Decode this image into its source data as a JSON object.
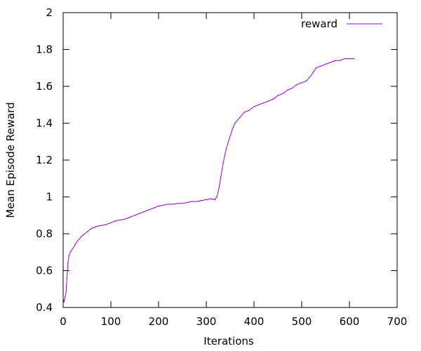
{
  "chart_data": {
    "type": "line",
    "title": "",
    "xlabel": "Iterations",
    "ylabel": "Mean Episode Reward",
    "xlim": [
      0,
      700
    ],
    "ylim": [
      0.4,
      2
    ],
    "xticks": [
      "0",
      "100",
      "200",
      "300",
      "400",
      "500",
      "600",
      "700"
    ],
    "yticks": [
      "0.4",
      "0.6",
      "0.8",
      "1",
      "1.2",
      "1.4",
      "1.6",
      "1.8",
      "2"
    ],
    "grid": false,
    "legend_position": "top-right",
    "series": [
      {
        "name": "reward",
        "color": "#9400d3",
        "x": [
          0,
          2,
          4,
          6,
          8,
          10,
          12,
          15,
          20,
          25,
          30,
          40,
          50,
          60,
          70,
          80,
          90,
          100,
          110,
          120,
          130,
          140,
          150,
          160,
          170,
          180,
          190,
          200,
          210,
          220,
          230,
          240,
          250,
          260,
          270,
          280,
          290,
          300,
          310,
          318,
          322,
          326,
          330,
          335,
          340,
          345,
          350,
          355,
          360,
          370,
          380,
          390,
          400,
          410,
          420,
          430,
          440,
          450,
          460,
          470,
          480,
          490,
          500,
          510,
          520,
          530,
          540,
          550,
          560,
          570,
          580,
          590,
          600,
          610
        ],
        "y": [
          0.45,
          0.43,
          0.46,
          0.48,
          0.56,
          0.64,
          0.68,
          0.7,
          0.72,
          0.74,
          0.76,
          0.79,
          0.81,
          0.83,
          0.84,
          0.845,
          0.85,
          0.86,
          0.87,
          0.875,
          0.88,
          0.89,
          0.9,
          0.91,
          0.92,
          0.93,
          0.94,
          0.95,
          0.955,
          0.96,
          0.96,
          0.965,
          0.965,
          0.97,
          0.975,
          0.975,
          0.98,
          0.985,
          0.99,
          0.985,
          1.0,
          1.04,
          1.1,
          1.18,
          1.24,
          1.29,
          1.33,
          1.37,
          1.4,
          1.43,
          1.46,
          1.47,
          1.49,
          1.5,
          1.51,
          1.52,
          1.53,
          1.55,
          1.56,
          1.58,
          1.59,
          1.61,
          1.62,
          1.63,
          1.66,
          1.7,
          1.71,
          1.72,
          1.73,
          1.74,
          1.74,
          1.75,
          1.75,
          1.75
        ]
      }
    ]
  }
}
